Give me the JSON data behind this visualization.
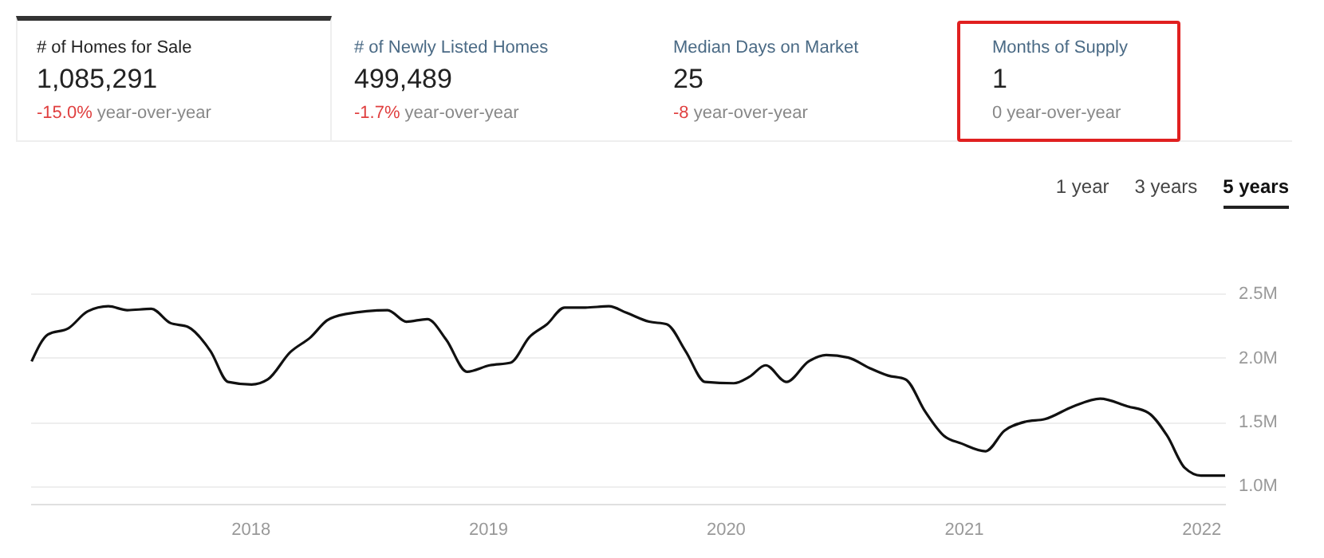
{
  "chart_data": [
    {
      "type": "other",
      "annotations": [
        "# of Homes for Sale",
        "1,085,291",
        "-15.0% year-over-year",
        "# of Newly Listed Homes",
        "499,489",
        "-1.7% year-over-year",
        "Median Days on Market",
        "25",
        "-8 year-over-year",
        "Months of Supply",
        "1",
        "0 year-over-year"
      ]
    },
    {
      "type": "line",
      "annotations": [
        "1 year",
        "3 years",
        "5 years"
      ],
      "x": [
        "2017-01-30",
        "2017-02-24",
        "2017-03-28",
        "2017-04-26",
        "2017-05-28",
        "2017-06-26",
        "2017-08-02",
        "2017-08-31",
        "2017-09-27",
        "2017-11-01",
        "2017-11-28",
        "2018-01-03",
        "2018-01-28",
        "2018-03-03",
        "2018-04-04",
        "2018-04-29",
        "2018-05-28",
        "2018-07-31",
        "2018-08-29",
        "2018-09-30",
        "2018-10-29",
        "2018-11-30",
        "2019-01-04",
        "2019-02-05",
        "2019-03-06",
        "2019-04-02",
        "2019-04-29",
        "2019-05-31",
        "2019-07-06",
        "2019-08-02",
        "2019-09-06",
        "2019-10-03",
        "2019-11-01",
        "2019-12-01",
        "2020-01-14",
        "2020-02-07",
        "2020-03-03",
        "2020-04-04",
        "2020-05-08",
        "2020-06-04",
        "2020-07-08",
        "2020-08-09",
        "2020-09-07",
        "2020-10-04",
        "2020-11-03",
        "2020-12-02",
        "2020-12-29",
        "2021-02-04",
        "2021-03-05",
        "2021-04-06",
        "2021-05-06",
        "2021-06-19",
        "2021-07-30",
        "2021-09-10",
        "2021-10-12",
        "2021-11-10",
        "2021-12-07",
        "2022-01-01",
        "2022-02-07"
      ],
      "series": [
        {
          "color": "#111111",
          "values": [
            1970000,
            2180000,
            2230000,
            2360000,
            2400000,
            2370000,
            2380000,
            2270000,
            2240000,
            2050000,
            1810000,
            1790000,
            1830000,
            2040000,
            2160000,
            2290000,
            2340000,
            2370000,
            2280000,
            2300000,
            2140000,
            1890000,
            1940000,
            1960000,
            2160000,
            2260000,
            2390000,
            2390000,
            2400000,
            2350000,
            2280000,
            2260000,
            2050000,
            1810000,
            1800000,
            1850000,
            1940000,
            1810000,
            1970000,
            2020000,
            2000000,
            1920000,
            1860000,
            1830000,
            1580000,
            1390000,
            1330000,
            1270000,
            1430000,
            1500000,
            1520000,
            1620000,
            1680000,
            1620000,
            1570000,
            1390000,
            1140000,
            1080000,
            1080000
          ]
        }
      ],
      "xlim": [
        "2017-01-28",
        "2022-02-07"
      ],
      "xticks": [
        {
          "value": "2018-01-01",
          "label": "2018"
        },
        {
          "value": "2019-01-01",
          "label": "2019"
        },
        {
          "value": "2020-01-01",
          "label": "2020"
        },
        {
          "value": "2021-01-01",
          "label": "2021"
        },
        {
          "value": "2022-01-01",
          "label": "2022"
        }
      ],
      "ylim": [
        860000,
        2650000
      ],
      "yticks": [
        {
          "value": 1000000,
          "label": "1.0M"
        },
        {
          "value": 1500000,
          "label": "1.5M"
        },
        {
          "value": 2000000,
          "label": "2.0M"
        },
        {
          "value": 2500000,
          "label": "2.5M"
        }
      ],
      "grid": "y",
      "marker": "none",
      "line_style": "solid"
    }
  ]
}
